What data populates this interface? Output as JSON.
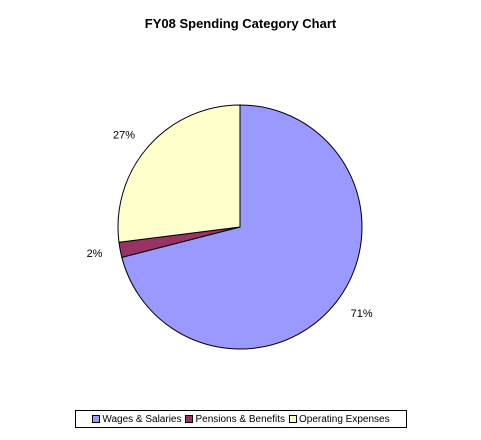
{
  "chart_data": {
    "type": "pie",
    "title": "FY08 Spending Category Chart",
    "slices": [
      {
        "name": "Wages & Salaries",
        "value": 71,
        "label": "71%",
        "color": "#9999ff"
      },
      {
        "name": "Pensions & Benefits",
        "value": 2,
        "label": "2%",
        "color": "#993366"
      },
      {
        "name": "Operating Expenses",
        "value": 27,
        "label": "27%",
        "color": "#ffffcc"
      }
    ],
    "legend_position": "bottom"
  }
}
